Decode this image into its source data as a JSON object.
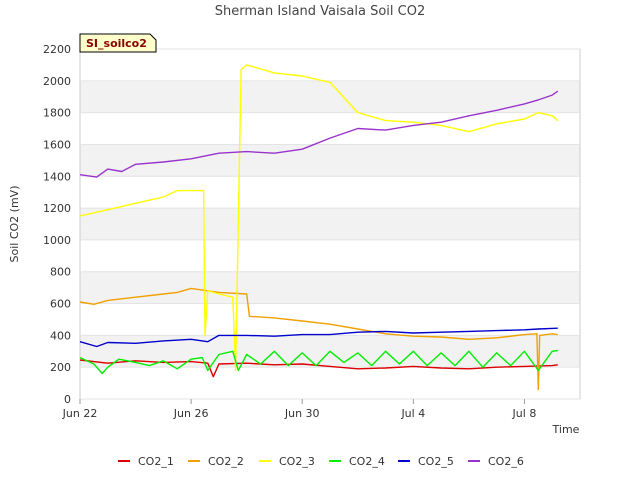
{
  "chart_data": {
    "type": "line",
    "title": "Sherman Island Vaisala Soil CO2",
    "badge": "SI_soilco2",
    "xlabel": "Time",
    "ylabel": "Soil CO2 (mV)",
    "xlim": [
      "2023-06-22",
      "2023-07-10"
    ],
    "ylim": [
      0,
      2200
    ],
    "yticks": [
      0,
      200,
      400,
      600,
      800,
      1000,
      1200,
      1400,
      1600,
      1800,
      2000,
      2200
    ],
    "xticks": [
      {
        "date": "2023-06-22",
        "label": "Jun 22"
      },
      {
        "date": "2023-06-26",
        "label": "Jun 26"
      },
      {
        "date": "2023-06-30",
        "label": "Jun 30"
      },
      {
        "date": "2023-07-04",
        "label": "Jul 4"
      },
      {
        "date": "2023-07-08",
        "label": "Jul 8"
      }
    ],
    "grid": "alternating horizontal bands",
    "legend_position": "bottom",
    "series": [
      {
        "name": "CO2_1",
        "color": "#dd0000",
        "points": [
          [
            "2023-06-22",
            245
          ],
          [
            "2023-06-23",
            225
          ],
          [
            "2023-06-24",
            240
          ],
          [
            "2023-06-25",
            230
          ],
          [
            "2023-06-26",
            235
          ],
          [
            "2023-06-26.6",
            225
          ],
          [
            "2023-06-26.8",
            140
          ],
          [
            "2023-06-27",
            220
          ],
          [
            "2023-06-28",
            225
          ],
          [
            "2023-06-29",
            215
          ],
          [
            "2023-06-30",
            220
          ],
          [
            "2023-07-01",
            205
          ],
          [
            "2023-07-02",
            190
          ],
          [
            "2023-07-03",
            195
          ],
          [
            "2023-07-04",
            205
          ],
          [
            "2023-07-05",
            195
          ],
          [
            "2023-07-06",
            190
          ],
          [
            "2023-07-07",
            200
          ],
          [
            "2023-07-08",
            205
          ],
          [
            "2023-07-09",
            210
          ],
          [
            "2023-07-09.2",
            215
          ]
        ]
      },
      {
        "name": "CO2_2",
        "color": "#f0a000",
        "points": [
          [
            "2023-06-22",
            610
          ],
          [
            "2023-06-22.5",
            595
          ],
          [
            "2023-06-23",
            620
          ],
          [
            "2023-06-24",
            640
          ],
          [
            "2023-06-25",
            660
          ],
          [
            "2023-06-25.5",
            670
          ],
          [
            "2023-06-26",
            695
          ],
          [
            "2023-06-26.6",
            680
          ],
          [
            "2023-06-27",
            670
          ],
          [
            "2023-06-28",
            660
          ],
          [
            "2023-06-28.1",
            520
          ],
          [
            "2023-06-29",
            510
          ],
          [
            "2023-06-30",
            490
          ],
          [
            "2023-07-01",
            470
          ],
          [
            "2023-07-02",
            440
          ],
          [
            "2023-07-03",
            410
          ],
          [
            "2023-07-04",
            395
          ],
          [
            "2023-07-05",
            390
          ],
          [
            "2023-07-06",
            375
          ],
          [
            "2023-07-07",
            385
          ],
          [
            "2023-07-08",
            405
          ],
          [
            "2023-07-08.45",
            410
          ],
          [
            "2023-07-08.5",
            60
          ],
          [
            "2023-07-08.55",
            400
          ],
          [
            "2023-07-09",
            410
          ],
          [
            "2023-07-09.2",
            405
          ]
        ]
      },
      {
        "name": "CO2_3",
        "color": "#ffff00",
        "points": [
          [
            "2023-06-22",
            1150
          ],
          [
            "2023-06-23",
            1190
          ],
          [
            "2023-06-24",
            1230
          ],
          [
            "2023-06-25",
            1270
          ],
          [
            "2023-06-25.5",
            1310
          ],
          [
            "2023-06-26",
            1310
          ],
          [
            "2023-06-26.45",
            1310
          ],
          [
            "2023-06-26.5",
            400
          ],
          [
            "2023-06-26.6",
            680
          ],
          [
            "2023-06-27",
            660
          ],
          [
            "2023-06-27.5",
            640
          ],
          [
            "2023-06-27.6",
            180
          ],
          [
            "2023-06-27.8",
            2070
          ],
          [
            "2023-06-28",
            2100
          ],
          [
            "2023-06-29",
            2050
          ],
          [
            "2023-06-30",
            2030
          ],
          [
            "2023-07-01",
            1990
          ],
          [
            "2023-07-02",
            1800
          ],
          [
            "2023-07-03",
            1750
          ],
          [
            "2023-07-04",
            1740
          ],
          [
            "2023-07-05",
            1720
          ],
          [
            "2023-07-06",
            1680
          ],
          [
            "2023-07-07",
            1730
          ],
          [
            "2023-07-08",
            1760
          ],
          [
            "2023-07-08.5",
            1800
          ],
          [
            "2023-07-09",
            1780
          ],
          [
            "2023-07-09.2",
            1750
          ]
        ]
      },
      {
        "name": "CO2_4",
        "color": "#00ee00",
        "points": [
          [
            "2023-06-22",
            260
          ],
          [
            "2023-06-22.5",
            220
          ],
          [
            "2023-06-22.8",
            160
          ],
          [
            "2023-06-23",
            200
          ],
          [
            "2023-06-23.4",
            250
          ],
          [
            "2023-06-24",
            230
          ],
          [
            "2023-06-24.5",
            210
          ],
          [
            "2023-06-25",
            240
          ],
          [
            "2023-06-25.5",
            190
          ],
          [
            "2023-06-26",
            250
          ],
          [
            "2023-06-26.4",
            260
          ],
          [
            "2023-06-26.6",
            180
          ],
          [
            "2023-06-27",
            280
          ],
          [
            "2023-06-27.5",
            300
          ],
          [
            "2023-06-27.7",
            180
          ],
          [
            "2023-06-28",
            280
          ],
          [
            "2023-06-28.5",
            220
          ],
          [
            "2023-06-29",
            300
          ],
          [
            "2023-06-29.5",
            210
          ],
          [
            "2023-06-30",
            290
          ],
          [
            "2023-06-30.5",
            210
          ],
          [
            "2023-07-01",
            300
          ],
          [
            "2023-07-01.5",
            230
          ],
          [
            "2023-07-02",
            290
          ],
          [
            "2023-07-02.5",
            210
          ],
          [
            "2023-07-03",
            300
          ],
          [
            "2023-07-03.5",
            220
          ],
          [
            "2023-07-04",
            300
          ],
          [
            "2023-07-04.5",
            210
          ],
          [
            "2023-07-05",
            290
          ],
          [
            "2023-07-05.5",
            210
          ],
          [
            "2023-07-06",
            300
          ],
          [
            "2023-07-06.5",
            200
          ],
          [
            "2023-07-07",
            290
          ],
          [
            "2023-07-07.5",
            210
          ],
          [
            "2023-07-08",
            300
          ],
          [
            "2023-07-08.5",
            180
          ],
          [
            "2023-07-09",
            300
          ],
          [
            "2023-07-09.2",
            305
          ]
        ]
      },
      {
        "name": "CO2_5",
        "color": "#0000cc",
        "points": [
          [
            "2023-06-22",
            360
          ],
          [
            "2023-06-22.6",
            330
          ],
          [
            "2023-06-23",
            355
          ],
          [
            "2023-06-24",
            350
          ],
          [
            "2023-06-25",
            365
          ],
          [
            "2023-06-26",
            375
          ],
          [
            "2023-06-26.6",
            360
          ],
          [
            "2023-06-27",
            400
          ],
          [
            "2023-06-28",
            400
          ],
          [
            "2023-06-29",
            395
          ],
          [
            "2023-06-30",
            405
          ],
          [
            "2023-07-01",
            405
          ],
          [
            "2023-07-02",
            420
          ],
          [
            "2023-07-03",
            425
          ],
          [
            "2023-07-04",
            415
          ],
          [
            "2023-07-05",
            420
          ],
          [
            "2023-07-06",
            425
          ],
          [
            "2023-07-07",
            430
          ],
          [
            "2023-07-08",
            435
          ],
          [
            "2023-07-08.5",
            440
          ],
          [
            "2023-07-09.2",
            445
          ]
        ]
      },
      {
        "name": "CO2_6",
        "color": "#9933cc",
        "points": [
          [
            "2023-06-22",
            1410
          ],
          [
            "2023-06-22.6",
            1395
          ],
          [
            "2023-06-23",
            1445
          ],
          [
            "2023-06-23.5",
            1430
          ],
          [
            "2023-06-24",
            1475
          ],
          [
            "2023-06-25",
            1490
          ],
          [
            "2023-06-26",
            1510
          ],
          [
            "2023-06-27",
            1545
          ],
          [
            "2023-06-28",
            1555
          ],
          [
            "2023-06-29",
            1545
          ],
          [
            "2023-06-30",
            1570
          ],
          [
            "2023-07-01",
            1640
          ],
          [
            "2023-07-02",
            1700
          ],
          [
            "2023-07-03",
            1690
          ],
          [
            "2023-07-04",
            1720
          ],
          [
            "2023-07-05",
            1740
          ],
          [
            "2023-07-06",
            1780
          ],
          [
            "2023-07-07",
            1815
          ],
          [
            "2023-07-08",
            1855
          ],
          [
            "2023-07-08.5",
            1880
          ],
          [
            "2023-07-09",
            1910
          ],
          [
            "2023-07-09.2",
            1935
          ]
        ]
      }
    ]
  }
}
